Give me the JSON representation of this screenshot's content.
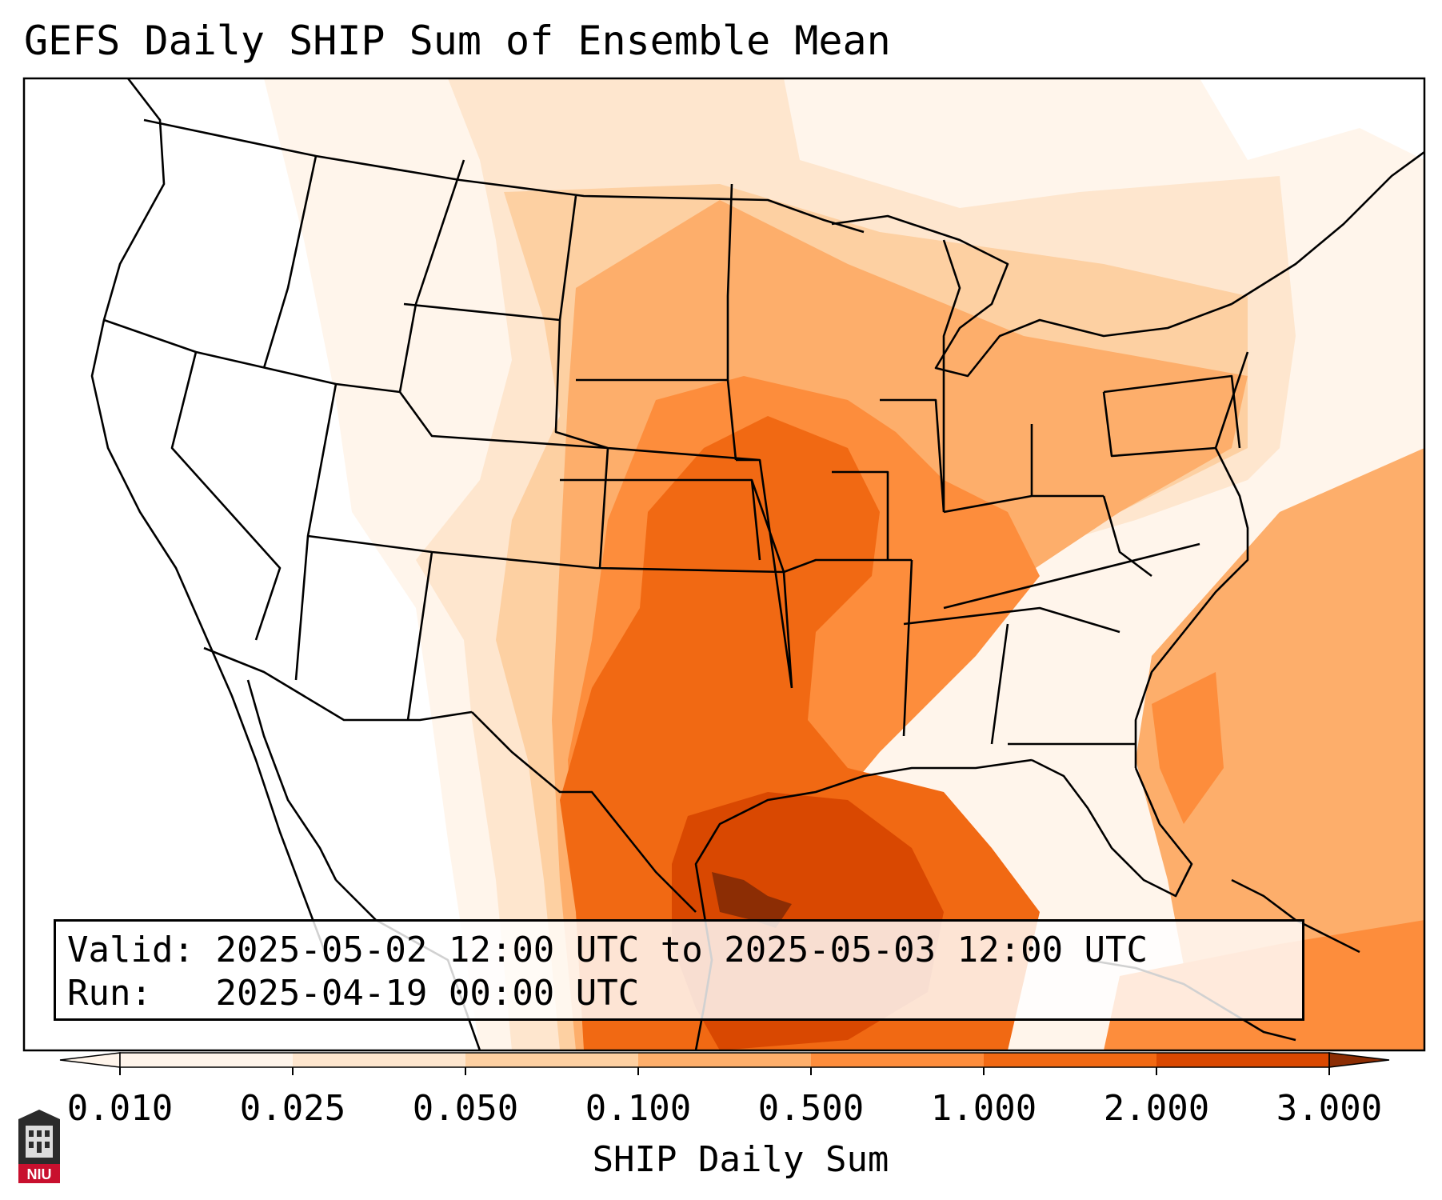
{
  "title": "GEFS Daily SHIP Sum of Ensemble Mean",
  "info": {
    "valid_label": "Valid:",
    "valid_value": "2025-05-02 12:00 UTC to 2025-05-03 12:00 UTC",
    "run_label": "Run:",
    "run_value": "2025-04-19 00:00 UTC"
  },
  "colorbar": {
    "title": "SHIP Daily Sum",
    "ticks": [
      "0.010",
      "0.025",
      "0.050",
      "0.100",
      "0.500",
      "1.000",
      "2.000",
      "3.000"
    ],
    "colors": [
      "#fff5eb",
      "#fee6ce",
      "#fdd0a2",
      "#fdae6b",
      "#fd8d3c",
      "#f16913",
      "#d94801",
      "#8c2d04"
    ],
    "extend": "both"
  },
  "logo": {
    "text": "NIU",
    "color": "#c8102e"
  },
  "map_colors": {
    "background": "#ffffff",
    "outline": "#000000"
  }
}
